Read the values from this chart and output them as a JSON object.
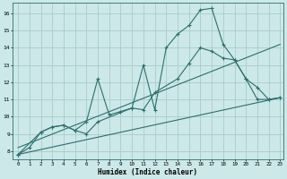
{
  "xlabel": "Humidex (Indice chaleur)",
  "bg_color": "#cce8e8",
  "grid_color": "#aacccc",
  "line_color": "#2d6e6e",
  "xmin": -0.5,
  "xmax": 23.3,
  "ymin": 7.5,
  "ymax": 16.6,
  "yticks": [
    8,
    9,
    10,
    11,
    12,
    13,
    14,
    15,
    16
  ],
  "xticks": [
    0,
    1,
    2,
    3,
    4,
    5,
    6,
    7,
    8,
    9,
    10,
    11,
    12,
    13,
    14,
    15,
    16,
    17,
    18,
    19,
    20,
    21,
    22,
    23
  ],
  "series1_x": [
    0,
    1,
    2,
    3,
    4,
    5,
    6,
    7,
    8,
    9,
    10,
    11,
    12,
    13,
    14,
    15,
    16,
    17,
    18,
    19,
    20,
    21,
    22,
    23
  ],
  "series1_y": [
    7.8,
    8.2,
    9.1,
    9.4,
    9.5,
    9.2,
    9.7,
    12.2,
    10.1,
    10.3,
    10.5,
    13.0,
    10.4,
    14.0,
    14.8,
    15.3,
    16.2,
    16.3,
    14.2,
    13.3,
    12.2,
    11.7,
    11.0,
    11.1
  ],
  "series2_x": [
    0,
    2,
    3,
    4,
    5,
    6,
    7,
    10,
    11,
    12,
    14,
    15,
    16,
    17,
    18,
    19,
    20,
    21,
    22,
    23
  ],
  "series2_y": [
    7.8,
    9.1,
    9.4,
    9.5,
    9.2,
    9.0,
    9.7,
    10.5,
    10.4,
    11.4,
    12.2,
    13.1,
    14.0,
    13.8,
    13.4,
    13.3,
    12.2,
    11.0,
    11.0,
    11.1
  ],
  "series3_x": [
    0,
    23
  ],
  "series3_y": [
    7.8,
    11.1
  ],
  "series4_x": [
    0,
    23
  ],
  "series4_y": [
    8.2,
    14.2
  ]
}
